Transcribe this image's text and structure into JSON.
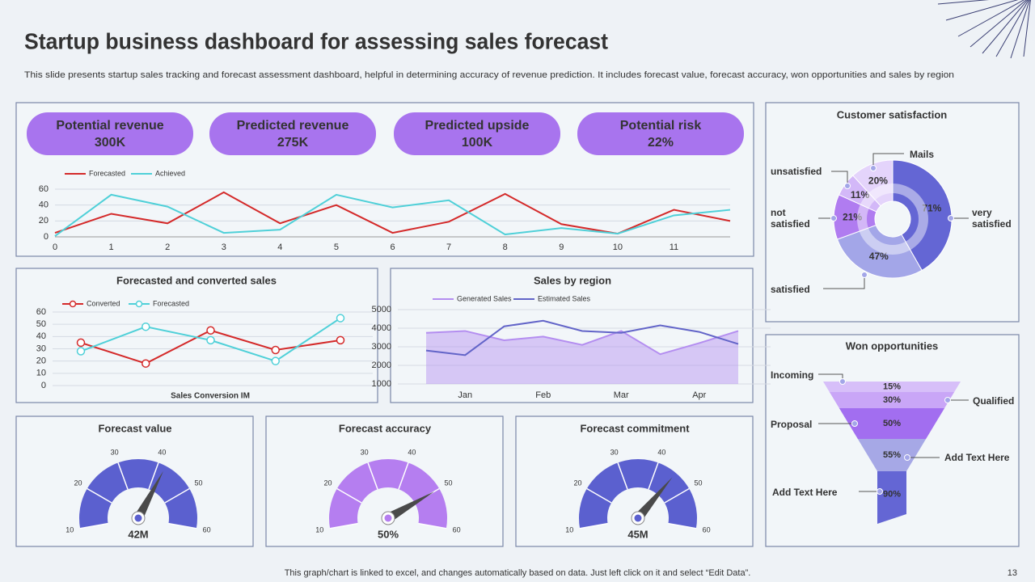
{
  "title": "Startup business dashboard for assessing sales forecast",
  "subtitle": "This slide presents startup sales tracking and forecast assessment dashboard, helpful in determining accuracy of revenue prediction. It includes forecast value, forecast accuracy,  won opportunities and sales by region",
  "kpis": [
    {
      "label": "Potential revenue",
      "value": "300K"
    },
    {
      "label": "Predicted revenue",
      "value": "275K"
    },
    {
      "label": "Predicted upside",
      "value": "100K"
    },
    {
      "label": "Potential risk",
      "value": "22%"
    }
  ],
  "chart_data": [
    {
      "type": "line",
      "x": [
        0,
        1,
        2,
        3,
        4,
        5,
        6,
        7,
        8,
        9,
        10,
        11,
        12
      ],
      "xlim": [
        0,
        12
      ],
      "xticks": [
        0,
        1,
        2,
        3,
        4,
        5,
        6,
        7,
        8,
        9,
        10,
        11
      ],
      "ylim": [
        0,
        60
      ],
      "yticks": [
        0,
        20,
        40,
        60
      ],
      "grid": true,
      "series": [
        {
          "name": "Forecasted",
          "color": "#d42a2a",
          "values": [
            5,
            29,
            17,
            56,
            17,
            40,
            5,
            19,
            54,
            16,
            4,
            34,
            20
          ]
        },
        {
          "name": "Achieved",
          "color": "#4fd0d8",
          "values": [
            1,
            53,
            38,
            5,
            9,
            53,
            37,
            46,
            3,
            11,
            4,
            27,
            34
          ]
        }
      ]
    },
    {
      "type": "line",
      "title": "Forecasted and converted sales",
      "xlabel": "Sales Conversion IM",
      "categories": [
        null,
        null,
        null,
        null,
        null
      ],
      "ylim": [
        0,
        60
      ],
      "yticks": [
        0,
        10,
        20,
        30,
        40,
        50,
        60
      ],
      "grid": true,
      "markers": true,
      "series": [
        {
          "name": "Converted",
          "color": "#d42a2a",
          "values": [
            35,
            18,
            45,
            29,
            37
          ]
        },
        {
          "name": "Forecasted",
          "color": "#4fd0d8",
          "values": [
            28,
            48,
            37,
            20,
            55
          ]
        }
      ]
    },
    {
      "type": "area",
      "title": "Sales by region",
      "categories": [
        null,
        "Jan",
        null,
        "Feb",
        null,
        "Mar",
        null,
        "Apr",
        null
      ],
      "ylim": [
        1000,
        5000
      ],
      "yticks": [
        1000,
        2000,
        3000,
        4000,
        5000
      ],
      "grid": true,
      "series": [
        {
          "name": "Generated Sales",
          "color": "#b48ef0",
          "fill": true,
          "values": [
            3750,
            3850,
            3350,
            3550,
            3100,
            3850,
            2600,
            3200,
            3850
          ]
        },
        {
          "name": "Estimated Sales",
          "color": "#6264c8",
          "values": [
            2800,
            2550,
            4100,
            4400,
            3850,
            3750,
            4150,
            3800,
            3150
          ]
        }
      ]
    },
    {
      "type": "donut",
      "title": "Customer  satisfaction",
      "categories": [
        "very satisfied",
        "satisfied",
        "not satisfied",
        "unsatisfied",
        "Mails"
      ],
      "values": [
        71,
        47,
        21,
        11,
        20
      ],
      "value_labels": [
        "71%",
        "47%",
        "21%",
        "11%",
        "20%"
      ],
      "colors": [
        "#6466d4",
        "#a3a6e8",
        "#b07cf0",
        "#d3b8f8",
        "#e4d4fb"
      ]
    },
    {
      "type": "funnel",
      "title": "Won opportunities",
      "categories": [
        "Incoming",
        "Qualified",
        "Proposal",
        "Add Text Here",
        "Add Text Here"
      ],
      "values": [
        15,
        30,
        50,
        55,
        90
      ],
      "value_labels": [
        "15%",
        "30%",
        "50%",
        "55%",
        "90%"
      ],
      "colors": [
        "#d7bff9",
        "#c9a6f7",
        "#a26ef0",
        "#a6a8e6",
        "#6466d4"
      ]
    },
    {
      "type": "gauge",
      "title": "Forecast value",
      "ylim": [
        10,
        60
      ],
      "yticks": [
        10,
        20,
        30,
        40,
        50,
        60
      ],
      "value": 42,
      "value_label": "42M",
      "color": "#5b60cf"
    },
    {
      "type": "gauge",
      "title": "Forecast accuracy",
      "ylim": [
        10,
        60
      ],
      "yticks": [
        10,
        20,
        30,
        40,
        50,
        60
      ],
      "value": 50,
      "value_label": "50%",
      "color": "#b57ef0"
    },
    {
      "type": "gauge",
      "title": "Forecast  commitment",
      "ylim": [
        10,
        60
      ],
      "yticks": [
        10,
        20,
        30,
        40,
        50,
        60
      ],
      "value": 45,
      "value_label": "45M",
      "color": "#5b60cf"
    }
  ],
  "footer": "This graph/chart is linked to excel,  and changes automatically based on data. Just left click on it and select “Edit Data”.",
  "page_number": "13"
}
